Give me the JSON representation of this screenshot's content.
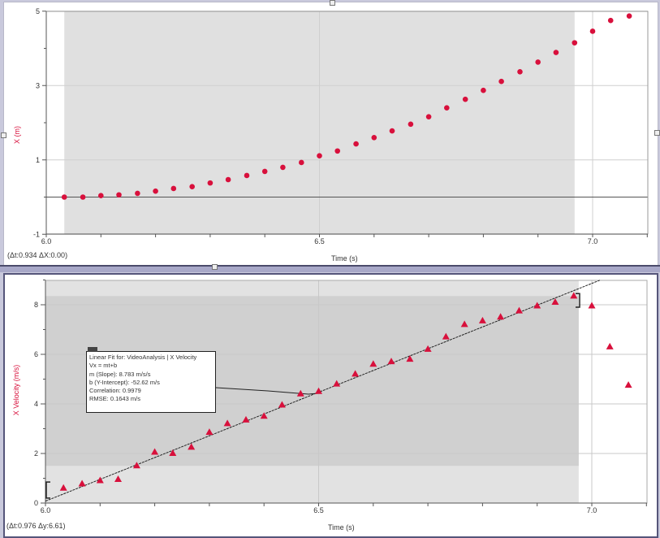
{
  "top_graph": {
    "y_label": "X (m)",
    "x_label": "Time (s)",
    "x_ticks": [
      "6.0",
      "6.5",
      "7.0"
    ],
    "y_ticks": [
      "5",
      "3",
      "1",
      "-1"
    ],
    "status": "(Δt:0.934 ΔX:0.00)"
  },
  "bottom_graph": {
    "y_label": "X Velocity (m/s)",
    "x_label": "Time (s)",
    "x_ticks": [
      "6.0",
      "6.5",
      "7.0"
    ],
    "y_ticks": [
      "8",
      "6",
      "4",
      "2",
      "0"
    ],
    "status": "(Δt:0.976 Δy:6.61)",
    "fit": {
      "title": "Linear Fit for: VideoAnalysis | X Velocity",
      "equation": "Vx = mt+b",
      "slope": "m (Slope): 8.783 m/s/s",
      "intercept": "b (Y-Intercept): -52.62 m/s",
      "correlation": "Correlation: 0.9979",
      "rmse": "RMSE: 0.1643 m/s"
    }
  },
  "colors": {
    "data_point": "#d8103c",
    "axis_label": "#d8103c",
    "selection_region": "#e0e0e0",
    "fit_region": "#d0d0d0"
  },
  "chart_data": [
    {
      "type": "scatter",
      "title": "",
      "xlabel": "Time (s)",
      "ylabel": "X (m)",
      "xlim": [
        6.0,
        7.1
      ],
      "ylim": [
        -1,
        5
      ],
      "grid": true,
      "selection_range": [
        6.033,
        6.967
      ],
      "x": [
        6.033,
        6.067,
        6.1,
        6.133,
        6.167,
        6.2,
        6.233,
        6.267,
        6.3,
        6.333,
        6.367,
        6.4,
        6.433,
        6.467,
        6.5,
        6.533,
        6.567,
        6.6,
        6.633,
        6.667,
        6.7,
        6.733,
        6.767,
        6.8,
        6.833,
        6.867,
        6.9,
        6.933,
        6.967,
        7.0,
        7.033,
        7.067
      ],
      "series": [
        {
          "name": "X",
          "values": [
            0.0,
            0.0,
            0.04,
            0.06,
            0.1,
            0.16,
            0.23,
            0.28,
            0.38,
            0.47,
            0.58,
            0.69,
            0.8,
            0.93,
            1.11,
            1.24,
            1.43,
            1.6,
            1.78,
            1.96,
            2.16,
            2.4,
            2.63,
            2.87,
            3.11,
            3.37,
            3.63,
            3.89,
            4.15,
            4.46,
            4.75,
            4.87
          ]
        }
      ]
    },
    {
      "type": "scatter",
      "title": "",
      "xlabel": "Time (s)",
      "ylabel": "X Velocity (m/s)",
      "xlim": [
        6.0,
        7.1
      ],
      "ylim": [
        0,
        9
      ],
      "grid": true,
      "selection_range": [
        6.0,
        6.976
      ],
      "x": [
        6.033,
        6.067,
        6.1,
        6.133,
        6.167,
        6.2,
        6.233,
        6.267,
        6.3,
        6.333,
        6.367,
        6.4,
        6.433,
        6.467,
        6.5,
        6.533,
        6.567,
        6.6,
        6.633,
        6.667,
        6.7,
        6.733,
        6.767,
        6.8,
        6.833,
        6.867,
        6.9,
        6.933,
        6.967,
        7.0,
        7.033,
        7.067
      ],
      "series": [
        {
          "name": "X Velocity",
          "values": [
            0.6,
            0.77,
            0.9,
            0.95,
            1.5,
            2.05,
            2.0,
            2.25,
            2.85,
            3.2,
            3.35,
            3.5,
            3.95,
            4.4,
            4.5,
            4.8,
            5.2,
            5.6,
            5.7,
            5.8,
            6.2,
            6.7,
            7.2,
            7.35,
            7.5,
            7.75,
            7.95,
            8.1,
            8.35,
            7.95,
            6.3,
            4.75
          ]
        },
        {
          "name": "Linear Fit",
          "slope": 8.783,
          "intercept": -52.62
        }
      ]
    }
  ]
}
